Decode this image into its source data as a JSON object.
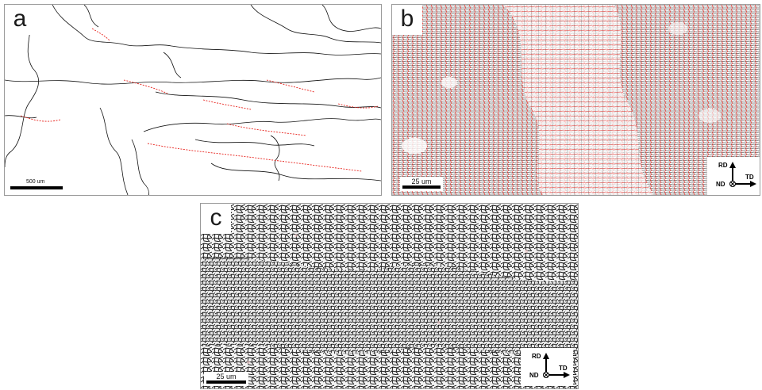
{
  "panels": [
    {
      "letter": "a",
      "scale_label": "500 um",
      "boundary_colors": [
        "#111111",
        "#e8241e"
      ]
    },
    {
      "letter": "b",
      "scale_label": "25 um",
      "boundary_colors": [
        "#111111",
        "#e8241e"
      ],
      "axes": {
        "up": "RD",
        "right": "TD",
        "normal": "ND"
      }
    },
    {
      "letter": "c",
      "scale_label": "25 um",
      "boundary_colors": [
        "#111111",
        "#e8241e"
      ],
      "axes": {
        "up": "RD",
        "right": "TD",
        "normal": "ND"
      }
    }
  ]
}
